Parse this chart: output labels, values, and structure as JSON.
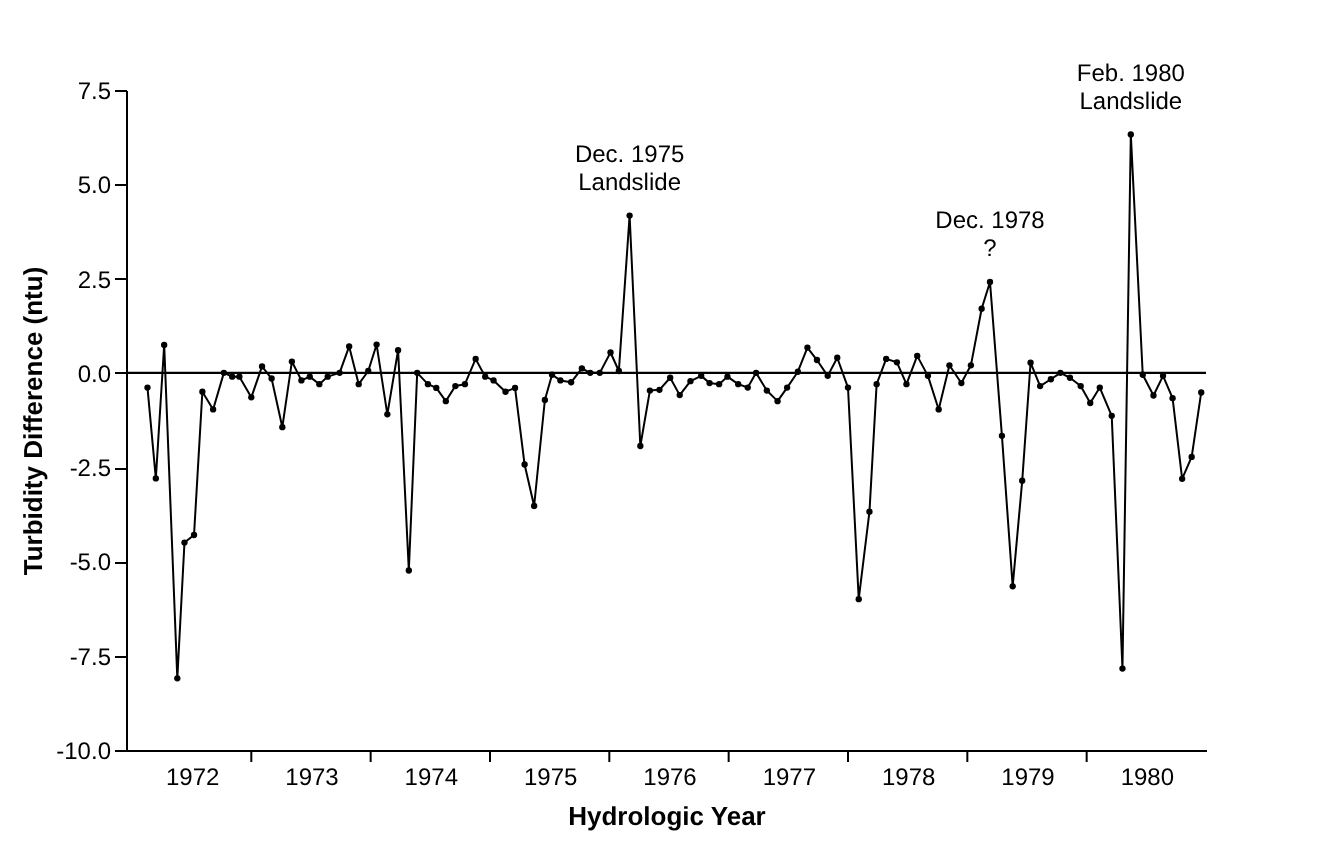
{
  "chart_data": {
    "type": "line",
    "xlabel": "Hydrologic Year",
    "ylabel": "Turbidity Difference (ntu)",
    "x": [
      1971.13,
      1971.2,
      1971.27,
      1971.38,
      1971.44,
      1971.52,
      1971.59,
      1971.68,
      1971.77,
      1971.84,
      1971.9,
      1972.0,
      1972.09,
      1972.17,
      1972.26,
      1972.34,
      1972.42,
      1972.49,
      1972.57,
      1972.64,
      1972.74,
      1972.82,
      1972.9,
      1972.98,
      1973.05,
      1973.14,
      1973.23,
      1973.32,
      1973.39,
      1973.48,
      1973.55,
      1973.63,
      1973.71,
      1973.79,
      1973.88,
      1973.96,
      1974.03,
      1974.13,
      1974.21,
      1974.29,
      1974.37,
      1974.46,
      1974.52,
      1974.59,
      1974.68,
      1974.77,
      1974.84,
      1974.92,
      1975.01,
      1975.08,
      1975.17,
      1975.26,
      1975.34,
      1975.42,
      1975.51,
      1975.59,
      1975.68,
      1975.77,
      1975.84,
      1975.92,
      1975.99,
      1976.08,
      1976.16,
      1976.23,
      1976.32,
      1976.41,
      1976.49,
      1976.58,
      1976.66,
      1976.74,
      1976.83,
      1976.91,
      1977.0,
      1977.09,
      1977.18,
      1977.24,
      1977.32,
      1977.41,
      1977.49,
      1977.58,
      1977.67,
      1977.76,
      1977.85,
      1977.95,
      1978.03,
      1978.12,
      1978.19,
      1978.29,
      1978.38,
      1978.46,
      1978.53,
      1978.61,
      1978.7,
      1978.78,
      1978.86,
      1978.95,
      1979.03,
      1979.11,
      1979.21,
      1979.3,
      1979.37,
      1979.47,
      1979.56,
      1979.64,
      1979.72,
      1979.8,
      1979.88,
      1979.96
    ],
    "series": [
      {
        "color": "#000000",
        "values": [
          -0.39,
          -2.8,
          0.74,
          -8.1,
          -4.5,
          -4.3,
          -0.5,
          -0.97,
          0.0,
          -0.1,
          -0.1,
          -0.65,
          0.17,
          -0.15,
          -1.44,
          0.3,
          -0.2,
          -0.1,
          -0.3,
          -0.1,
          0.0,
          0.7,
          -0.3,
          0.05,
          0.75,
          -1.1,
          0.6,
          -5.24,
          0.0,
          -0.3,
          -0.4,
          -0.75,
          -0.35,
          -0.3,
          0.37,
          -0.1,
          -0.2,
          -0.5,
          -0.4,
          -2.43,
          -3.53,
          -0.72,
          -0.05,
          -0.2,
          -0.25,
          0.12,
          0.0,
          0.0,
          0.54,
          0.05,
          4.17,
          -1.94,
          -0.47,
          -0.45,
          -0.13,
          -0.59,
          -0.22,
          -0.08,
          -0.27,
          -0.3,
          -0.1,
          -0.3,
          -0.39,
          0.0,
          -0.47,
          -0.75,
          -0.39,
          0.03,
          0.67,
          0.34,
          -0.08,
          0.4,
          -0.39,
          -6.0,
          -3.68,
          -0.3,
          0.37,
          0.28,
          -0.3,
          0.45,
          -0.08,
          -0.97,
          0.2,
          -0.27,
          0.2,
          1.7,
          2.41,
          -1.67,
          -5.66,
          -2.86,
          0.27,
          -0.35,
          -0.17,
          0.0,
          -0.13,
          -0.35,
          -0.8,
          -0.39,
          -1.14,
          -7.84,
          6.32,
          -0.05,
          -0.6,
          -0.08,
          -0.67,
          -2.81,
          -2.23,
          -0.52
        ]
      }
    ],
    "xlim": [
      1970.95,
      1980
    ],
    "xticks": [
      {
        "value": 1971.5,
        "label": "1972"
      },
      {
        "value": 1972,
        "label": null
      },
      {
        "value": 1972.5,
        "label": "1973"
      },
      {
        "value": 1973,
        "label": null
      },
      {
        "value": 1973.5,
        "label": "1974"
      },
      {
        "value": 1974,
        "label": null
      },
      {
        "value": 1974.5,
        "label": "1975"
      },
      {
        "value": 1975,
        "label": null
      },
      {
        "value": 1975.5,
        "label": "1976"
      },
      {
        "value": 1976,
        "label": null
      },
      {
        "value": 1976.5,
        "label": "1977"
      },
      {
        "value": 1977,
        "label": null
      },
      {
        "value": 1977.5,
        "label": "1978"
      },
      {
        "value": 1978,
        "label": null
      },
      {
        "value": 1978.5,
        "label": "1979"
      },
      {
        "value": 1979,
        "label": null
      },
      {
        "value": 1979.5,
        "label": "1980"
      }
    ],
    "ylim": [
      -10,
      7.5
    ],
    "yticks": [
      {
        "value": -10,
        "label": "-10.0"
      },
      {
        "value": -7.5,
        "label": "-7.5"
      },
      {
        "value": -5,
        "label": "-5.0"
      },
      {
        "value": -2.5,
        "label": "-2.5"
      },
      {
        "value": 0,
        "label": "0.0"
      },
      {
        "value": 2.5,
        "label": "2.5"
      },
      {
        "value": 5,
        "label": "5.0"
      },
      {
        "value": 7.5,
        "label": "7.5"
      }
    ],
    "ref_lines": [
      {
        "axis": "y",
        "value": 0,
        "color": "#000000"
      }
    ],
    "annotations": [
      {
        "text": "Dec. 1975\nLandslide",
        "x": 1975.17,
        "y": 4.17
      },
      {
        "text": "Dec. 1978\n?",
        "x": 1978.19,
        "y": 2.41
      },
      {
        "text": "Feb. 1980\nLandslide",
        "x": 1979.37,
        "y": 6.32
      }
    ],
    "marker": "circle",
    "grid": false
  }
}
